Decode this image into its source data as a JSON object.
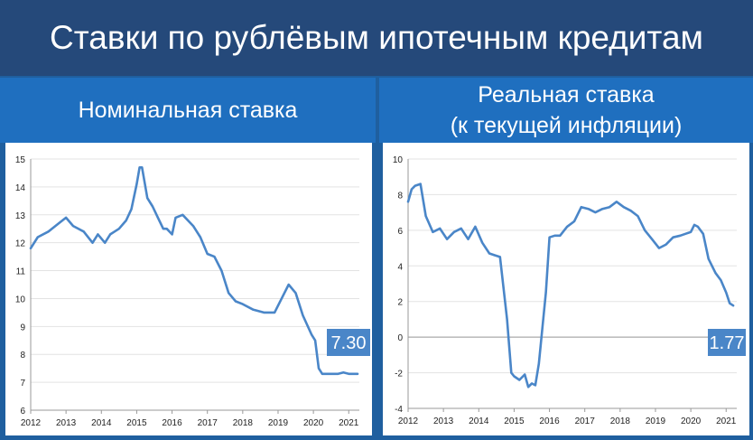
{
  "title": "Ставки по рублёвым ипотечным кредитам",
  "left_heading": "Номинальная ставка",
  "right_heading_line1": "Реальная ставка",
  "right_heading_line2": "(к текущей инфляции)",
  "colors": {
    "line": "#4a86c8",
    "label_bg": "#4a86c8",
    "title_bg": "#25497a",
    "panel_bg": "#1f6fbf"
  },
  "chart_data": [
    {
      "type": "line",
      "title": "Номинальная ставка",
      "x_tick_labels": [
        "2012",
        "2013",
        "2014",
        "2015",
        "2016",
        "2017",
        "2018",
        "2019",
        "2020",
        "2021"
      ],
      "ylim": [
        6,
        15
      ],
      "y_ticks": [
        6,
        7,
        8,
        9,
        10,
        11,
        12,
        13,
        14,
        15
      ],
      "grid": "horizontal",
      "end_label": "7.30",
      "x": [
        2012.0,
        2012.2,
        2012.5,
        2012.8,
        2013.0,
        2013.2,
        2013.5,
        2013.75,
        2013.9,
        2014.1,
        2014.25,
        2014.5,
        2014.7,
        2014.85,
        2015.0,
        2015.08,
        2015.15,
        2015.3,
        2015.45,
        2015.6,
        2015.75,
        2015.85,
        2016.0,
        2016.1,
        2016.3,
        2016.6,
        2016.8,
        2017.0,
        2017.2,
        2017.4,
        2017.6,
        2017.8,
        2018.0,
        2018.3,
        2018.6,
        2018.9,
        2019.1,
        2019.3,
        2019.5,
        2019.7,
        2019.95,
        2020.05,
        2020.15,
        2020.25,
        2020.4,
        2020.55,
        2020.7,
        2020.85,
        2021.0,
        2021.1,
        2021.25
      ],
      "y": [
        11.8,
        12.2,
        12.4,
        12.7,
        12.9,
        12.6,
        12.4,
        12.0,
        12.3,
        12.0,
        12.3,
        12.5,
        12.8,
        13.2,
        14.1,
        14.7,
        14.7,
        13.6,
        13.3,
        12.9,
        12.5,
        12.5,
        12.3,
        12.9,
        13.0,
        12.6,
        12.2,
        11.6,
        11.5,
        11.0,
        10.2,
        9.9,
        9.8,
        9.6,
        9.5,
        9.5,
        10.0,
        10.5,
        10.2,
        9.4,
        8.7,
        8.5,
        7.5,
        7.3,
        7.3,
        7.3,
        7.3,
        7.35,
        7.3,
        7.3,
        7.3
      ]
    },
    {
      "type": "line",
      "title": "Реальная ставка (к текущей инфляции)",
      "x_tick_labels": [
        "2012",
        "2013",
        "2014",
        "2015",
        "2016",
        "2017",
        "2018",
        "2019",
        "2020",
        "2021"
      ],
      "ylim": [
        -4,
        10
      ],
      "y_ticks": [
        -4,
        -2,
        0,
        2,
        4,
        6,
        8,
        10
      ],
      "grid": "horizontal",
      "end_label": "1.77",
      "x": [
        2012.0,
        2012.1,
        2012.2,
        2012.35,
        2012.5,
        2012.7,
        2012.9,
        2013.1,
        2013.3,
        2013.5,
        2013.7,
        2013.9,
        2014.1,
        2014.3,
        2014.45,
        2014.6,
        2014.8,
        2014.92,
        2015.0,
        2015.15,
        2015.3,
        2015.4,
        2015.5,
        2015.6,
        2015.7,
        2015.8,
        2015.9,
        2016.0,
        2016.15,
        2016.3,
        2016.5,
        2016.7,
        2016.9,
        2017.1,
        2017.3,
        2017.5,
        2017.7,
        2017.9,
        2018.1,
        2018.3,
        2018.5,
        2018.7,
        2018.9,
        2019.1,
        2019.3,
        2019.5,
        2019.7,
        2019.85,
        2020.0,
        2020.1,
        2020.2,
        2020.35,
        2020.5,
        2020.7,
        2020.85,
        2021.0,
        2021.1,
        2021.2
      ],
      "y": [
        7.6,
        8.3,
        8.5,
        8.6,
        6.8,
        5.9,
        6.1,
        5.5,
        5.9,
        6.1,
        5.5,
        6.2,
        5.3,
        4.7,
        4.6,
        4.5,
        1.0,
        -2.0,
        -2.2,
        -2.4,
        -2.1,
        -2.8,
        -2.6,
        -2.7,
        -1.5,
        0.5,
        2.5,
        5.6,
        5.7,
        5.7,
        6.2,
        6.5,
        7.3,
        7.2,
        7.0,
        7.2,
        7.3,
        7.6,
        7.3,
        7.1,
        6.8,
        6.0,
        5.5,
        5.0,
        5.2,
        5.6,
        5.7,
        5.8,
        5.9,
        6.3,
        6.2,
        5.8,
        4.4,
        3.6,
        3.2,
        2.5,
        1.9,
        1.77
      ]
    }
  ]
}
